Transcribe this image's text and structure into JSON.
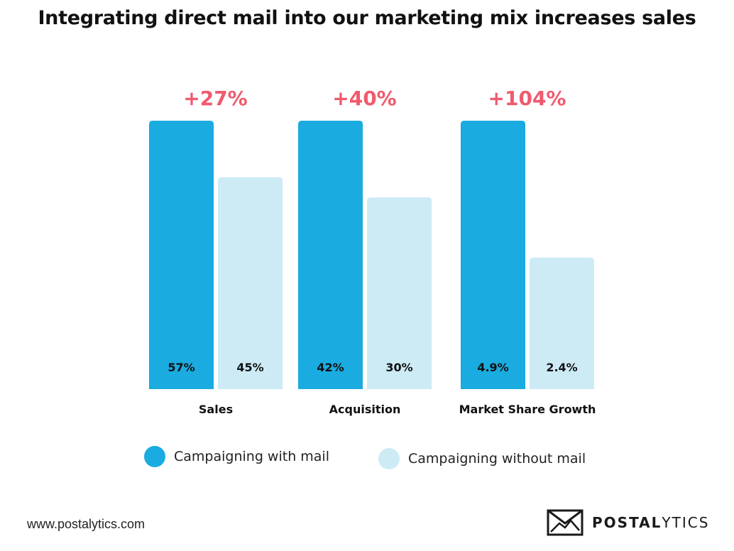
{
  "title": "Integrating direct mail into our marketing mix increases sales",
  "colors": {
    "with_mail": "#1aabe0",
    "without_mail": "#ccebf5",
    "lift": "#f05a6e",
    "text": "#111111"
  },
  "chart_data": {
    "type": "bar",
    "categories": [
      "Sales",
      "Acquisition",
      "Market Share Growth"
    ],
    "series": [
      {
        "name": "Campaigning with mail",
        "values": [
          57,
          42,
          4.9
        ],
        "labels": [
          "57%",
          "42%",
          "4.9%"
        ]
      },
      {
        "name": "Campaigning without mail",
        "values": [
          45,
          30,
          2.4
        ],
        "labels": [
          "45%",
          "30%",
          "2.4%"
        ]
      }
    ],
    "lift_labels": [
      "+27%",
      "+40%",
      "+104%"
    ],
    "legend_position": "bottom"
  },
  "footer": {
    "url": "www.postalytics.com",
    "brand_bold": "POSTAL",
    "brand_rest": "YTICS",
    "logo_icon": "envelope-icon"
  }
}
